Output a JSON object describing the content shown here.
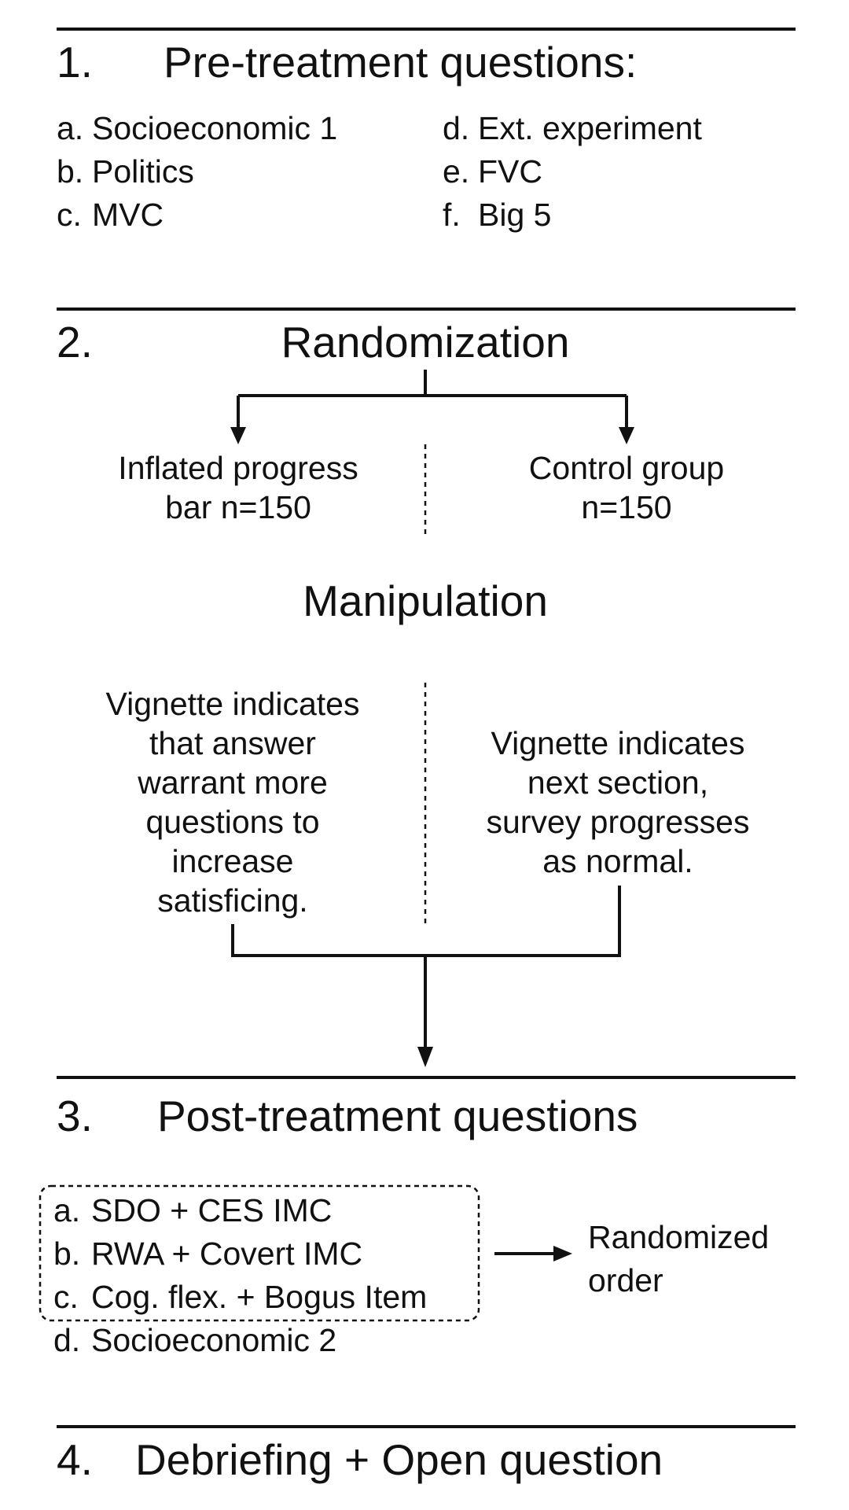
{
  "section1": {
    "number": "1.",
    "title": "Pre-treatment questions:",
    "items": [
      {
        "letter": "a.",
        "text": "Socioeconomic 1"
      },
      {
        "letter": "b.",
        "text": "Politics"
      },
      {
        "letter": "c.",
        "text": "MVC"
      },
      {
        "letter": "d.",
        "text": "Ext. experiment"
      },
      {
        "letter": "e.",
        "text": "FVC"
      },
      {
        "letter": "f.",
        "text": "Big 5"
      }
    ]
  },
  "section2": {
    "number": "2.",
    "title": "Randomization",
    "treatment_group": [
      "Inflated progress",
      "bar n=150"
    ],
    "control_group": [
      "Control group",
      "n=150"
    ],
    "manipulation_title": "Manipulation",
    "treatment_vignette": [
      "Vignette indicates",
      "that answer",
      "warrant more",
      "questions to",
      "increase",
      "satisficing."
    ],
    "control_vignette": [
      "Vignette indicates",
      "next section,",
      "survey progresses",
      "as normal."
    ]
  },
  "section3": {
    "number": "3.",
    "title": "Post-treatment questions",
    "items": [
      {
        "letter": "a.",
        "text": "SDO + CES IMC"
      },
      {
        "letter": "b.",
        "text": "RWA + Covert IMC"
      },
      {
        "letter": "c.",
        "text": "Cog. flex. + Bogus Item"
      },
      {
        "letter": "d.",
        "text": "Socioeconomic 2"
      }
    ],
    "randomized_note": [
      "Randomized",
      "order"
    ]
  },
  "section4": {
    "number": "4.",
    "title": "Debriefing + Open question"
  }
}
